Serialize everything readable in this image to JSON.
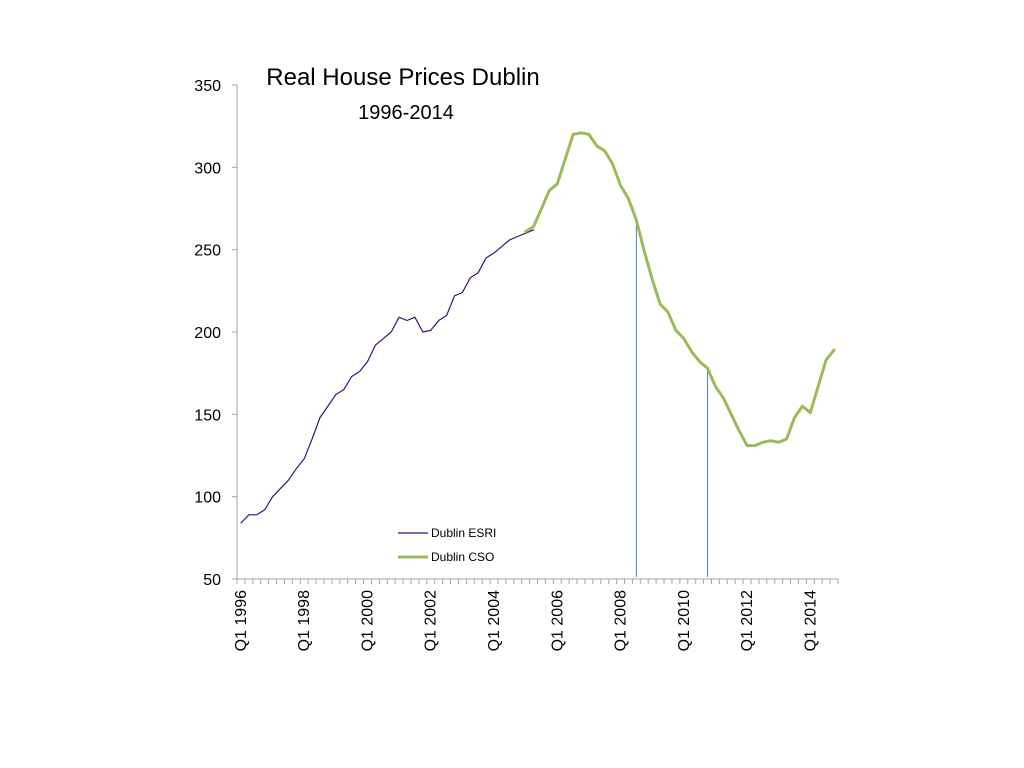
{
  "chart_data": {
    "type": "line",
    "title": "Real House Prices Dublin",
    "subtitle": "1996-2014",
    "xlabel": "",
    "ylabel": "",
    "ylim": [
      50,
      350
    ],
    "yticks": [
      50,
      100,
      150,
      200,
      250,
      300,
      350
    ],
    "x_tick_labels": [
      "Q1 1996",
      "Q1 1998",
      "Q1 2000",
      "Q1 2002",
      "Q1 2004",
      "Q1 2006",
      "Q1 2008",
      "Q1 2010",
      "Q1 2012",
      "Q1 2014"
    ],
    "grid": false,
    "legend_position": "center-bottom",
    "vertical_lines": [
      "2008Q3",
      "2010Q4"
    ],
    "series": [
      {
        "name": "Dublin ESRI",
        "color": "#1f1f7a",
        "x": [
          "1996Q1",
          "1996Q2",
          "1996Q3",
          "1996Q4",
          "1997Q1",
          "1997Q2",
          "1997Q3",
          "1997Q4",
          "1998Q1",
          "1998Q2",
          "1998Q3",
          "1998Q4",
          "1999Q1",
          "1999Q2",
          "1999Q3",
          "1999Q4",
          "2000Q1",
          "2000Q2",
          "2000Q3",
          "2000Q4",
          "2001Q1",
          "2001Q2",
          "2001Q3",
          "2001Q4",
          "2002Q1",
          "2002Q2",
          "2002Q3",
          "2002Q4",
          "2003Q1",
          "2003Q2",
          "2003Q3",
          "2003Q4",
          "2004Q1",
          "2004Q2",
          "2004Q3",
          "2004Q4",
          "2005Q1",
          "2005Q2"
        ],
        "values": [
          84,
          89,
          89,
          92,
          100,
          105,
          110,
          117,
          123,
          135,
          148,
          155,
          162,
          165,
          173,
          176,
          182,
          192,
          196,
          200,
          209,
          207,
          209,
          200,
          201,
          207,
          210,
          222,
          224,
          233,
          236,
          245,
          248,
          252,
          256,
          258,
          260,
          262
        ]
      },
      {
        "name": "Dublin CSO",
        "color": "#9bbb59",
        "x": [
          "2005Q1",
          "2005Q2",
          "2005Q3",
          "2005Q4",
          "2006Q1",
          "2006Q2",
          "2006Q3",
          "2006Q4",
          "2007Q1",
          "2007Q2",
          "2007Q3",
          "2007Q4",
          "2008Q1",
          "2008Q2",
          "2008Q3",
          "2008Q4",
          "2009Q1",
          "2009Q2",
          "2009Q3",
          "2009Q4",
          "2010Q1",
          "2010Q2",
          "2010Q3",
          "2010Q4",
          "2011Q1",
          "2011Q2",
          "2011Q3",
          "2011Q4",
          "2012Q1",
          "2012Q2",
          "2012Q3",
          "2012Q4",
          "2013Q1",
          "2013Q2",
          "2013Q3",
          "2013Q4",
          "2014Q1",
          "2014Q2",
          "2014Q3",
          "2014Q4"
        ],
        "values": [
          261,
          264,
          275,
          286,
          290,
          305,
          320,
          321,
          320,
          313,
          310,
          302,
          289,
          281,
          268,
          249,
          232,
          217,
          212,
          201,
          196,
          188,
          182,
          178,
          167,
          160,
          150,
          140,
          131,
          131,
          133,
          134,
          133,
          135,
          148,
          155,
          151,
          167,
          183,
          189
        ]
      }
    ]
  }
}
